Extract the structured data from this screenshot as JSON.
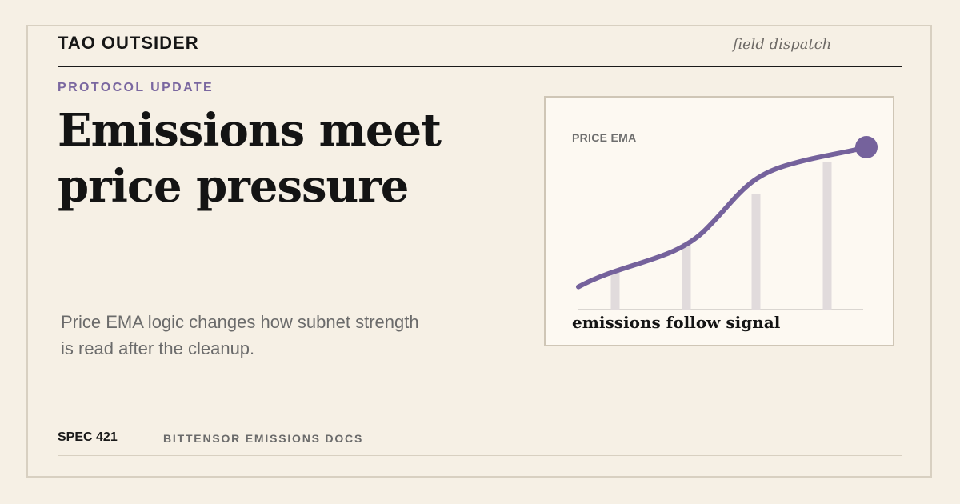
{
  "masthead": {
    "brand": "TAO OUTSIDER",
    "tagline": "field dispatch"
  },
  "article": {
    "kicker": "PROTOCOL UPDATE",
    "headline_lines": [
      "Emissions meet",
      "price pressure"
    ],
    "deck_lines": [
      "Price EMA logic changes how subnet strength",
      "is read after the cleanup."
    ]
  },
  "footer": {
    "spec": "SPEC 421",
    "source": "BITTENSOR EMISSIONS DOCS"
  },
  "colors": {
    "accent": "#75629c",
    "bars": "#e1dbdc",
    "background": "#f6f0e5",
    "card": "#fdf9f2"
  },
  "chart_data": {
    "type": "line",
    "label": "PRICE EMA",
    "caption": "emissions follow signal",
    "bar_heights": [
      0.24,
      0.41,
      0.71,
      0.91
    ],
    "line_start": 0.14,
    "line_end": 1.0,
    "end_marker": true
  }
}
